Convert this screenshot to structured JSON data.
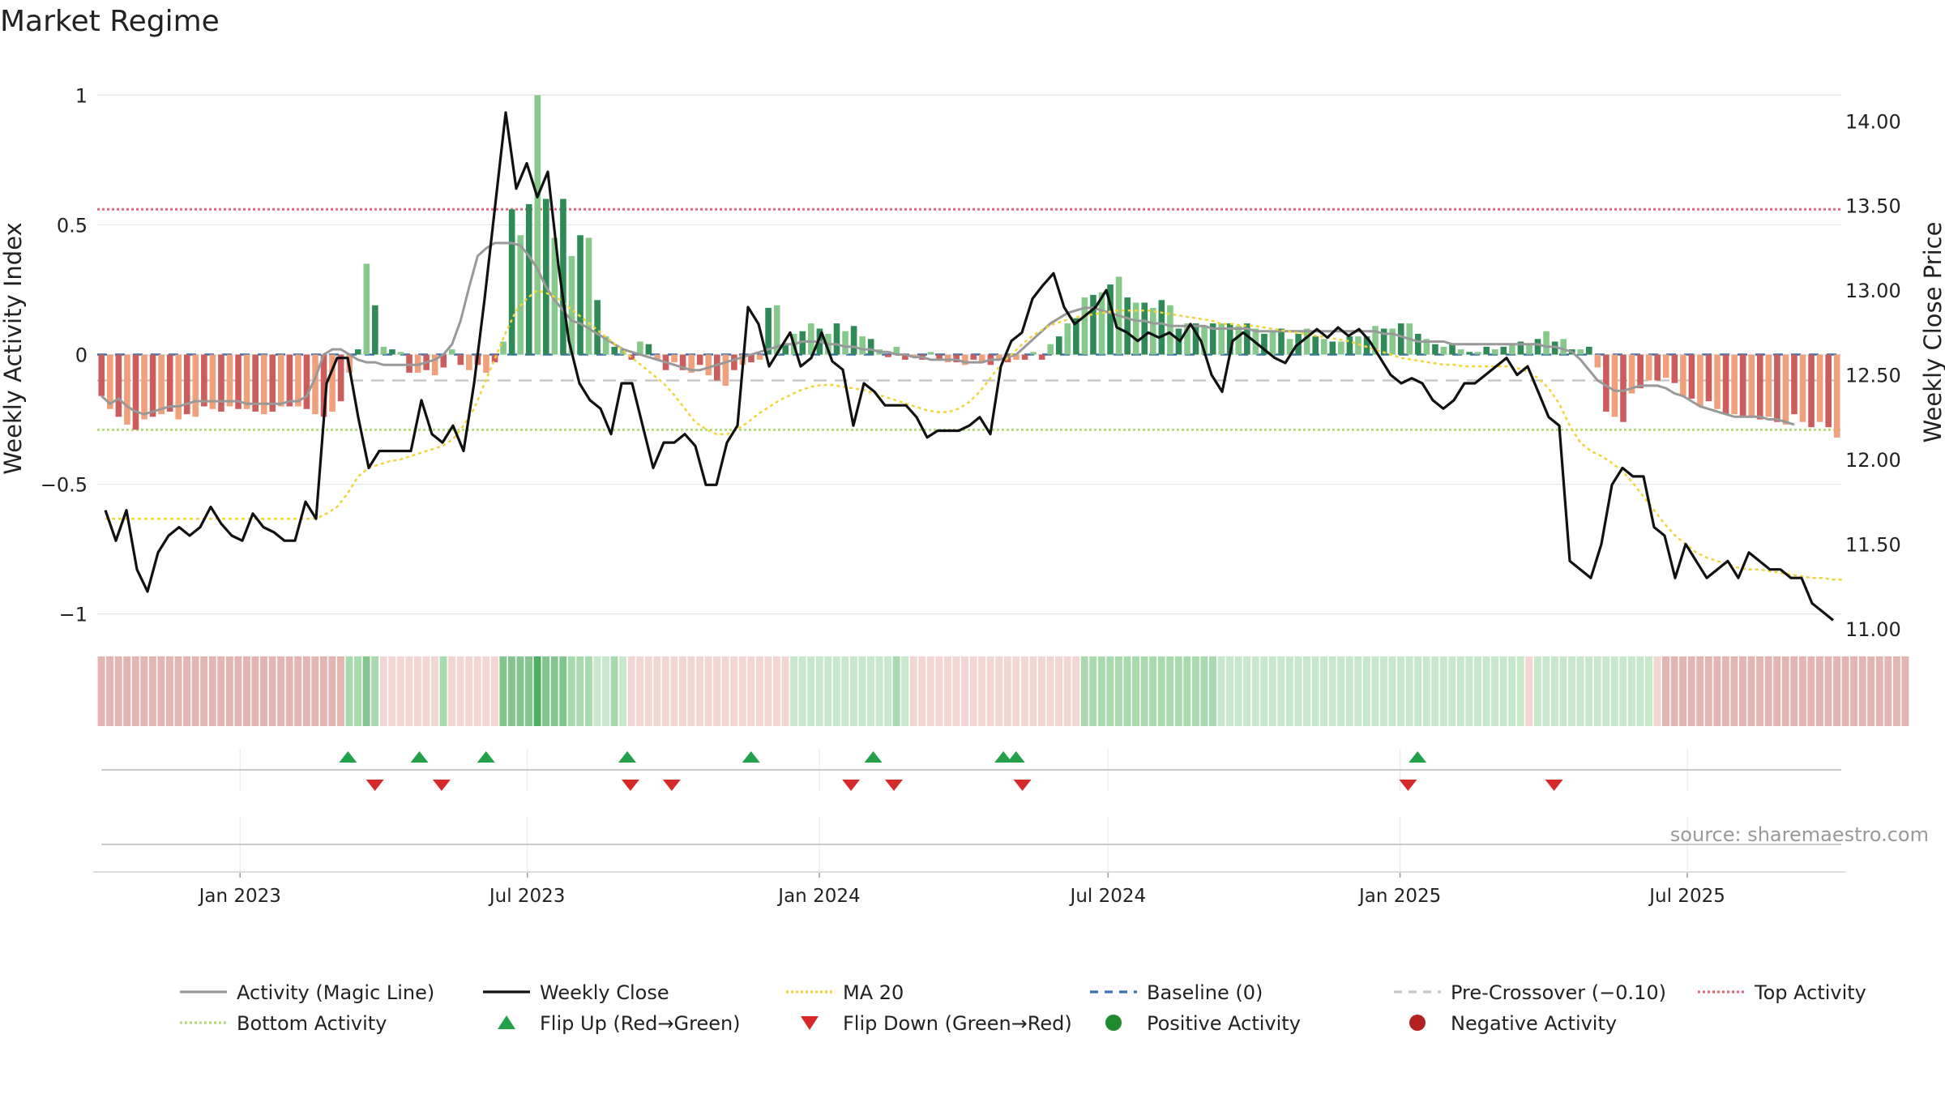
{
  "chart_data": {
    "type": "bar",
    "title": "Market Regime",
    "ylabel_left": "Weekly Activity Index",
    "ylabel_right": "Weekly Close Price",
    "ylim_left": [
      -1.07,
      1.07
    ],
    "ylim_right": [
      10.98,
      14.26
    ],
    "yticks_left": [
      {
        "v": 1,
        "label": "1"
      },
      {
        "v": 0.5,
        "label": "0.5"
      },
      {
        "v": 0,
        "label": "0"
      },
      {
        "v": -0.5,
        "label": "−0.5"
      },
      {
        "v": -1,
        "label": "−1"
      }
    ],
    "yticks_right": [
      {
        "v": 14.0,
        "label": "14.00"
      },
      {
        "v": 13.5,
        "label": "13.50"
      },
      {
        "v": 13.0,
        "label": "13.00"
      },
      {
        "v": 12.5,
        "label": "12.50"
      },
      {
        "v": 12.0,
        "label": "12.00"
      },
      {
        "v": 11.5,
        "label": "11.50"
      },
      {
        "v": 11.0,
        "label": "11.00"
      }
    ],
    "x_start": "2022-10-03",
    "x_end": "2025-10-06",
    "xticks": [
      {
        "date": "2023-01-01",
        "label": "Jan 2023"
      },
      {
        "date": "2023-07-01",
        "label": "Jul 2023"
      },
      {
        "date": "2024-01-01",
        "label": "Jan 2024"
      },
      {
        "date": "2024-07-01",
        "label": "Jul 2024"
      },
      {
        "date": "2025-01-01",
        "label": "Jan 2025"
      },
      {
        "date": "2025-07-01",
        "label": "Jul 2025"
      }
    ],
    "top_activity": 0.56,
    "bottom_activity": -0.29,
    "pre_crossover": -0.1,
    "baseline": 0,
    "activity": [
      -0.16,
      -0.21,
      -0.24,
      -0.27,
      -0.29,
      -0.25,
      -0.24,
      -0.23,
      -0.22,
      -0.25,
      -0.23,
      -0.24,
      -0.2,
      -0.21,
      -0.22,
      -0.2,
      -0.21,
      -0.21,
      -0.22,
      -0.23,
      -0.22,
      -0.2,
      -0.2,
      -0.2,
      -0.21,
      -0.23,
      -0.24,
      -0.22,
      -0.18,
      -0.07,
      0.02,
      0.35,
      0.19,
      0.03,
      0.02,
      0.01,
      -0.07,
      -0.07,
      -0.06,
      -0.08,
      -0.05,
      0.02,
      -0.04,
      -0.06,
      -0.04,
      -0.07,
      -0.03,
      0.05,
      0.56,
      0.46,
      0.58,
      1.0,
      0.6,
      0.45,
      0.6,
      0.38,
      0.46,
      0.45,
      0.21,
      0.07,
      0.03,
      0.02,
      -0.02,
      0.05,
      0.04,
      -0.02,
      -0.06,
      -0.03,
      -0.06,
      -0.07,
      -0.04,
      -0.08,
      -0.1,
      -0.12,
      -0.06,
      -0.04,
      -0.03,
      -0.02,
      0.18,
      0.19,
      0.04,
      0.08,
      0.09,
      0.12,
      0.1,
      0.08,
      0.12,
      0.09,
      0.11,
      0.07,
      0.06,
      0.02,
      -0.01,
      0.03,
      -0.02,
      -0.01,
      -0.02,
      0.01,
      -0.02,
      -0.03,
      -0.03,
      -0.04,
      -0.02,
      -0.03,
      -0.04,
      -0.02,
      -0.03,
      -0.02,
      -0.02,
      0.01,
      -0.02,
      0.04,
      0.07,
      0.12,
      0.14,
      0.22,
      0.23,
      0.24,
      0.27,
      0.3,
      0.22,
      0.2,
      0.2,
      0.18,
      0.21,
      0.19,
      0.1,
      0.12,
      0.12,
      0.11,
      0.12,
      0.12,
      0.12,
      0.11,
      0.12,
      0.1,
      0.08,
      0.09,
      0.1,
      0.06,
      0.08,
      0.1,
      0.07,
      0.06,
      0.05,
      0.05,
      0.07,
      0.07,
      0.07,
      0.11,
      0.1,
      0.1,
      0.12,
      0.12,
      0.08,
      0.06,
      0.04,
      0.03,
      0.04,
      0.02,
      0.01,
      0.01,
      0.03,
      0.02,
      0.03,
      0.04,
      0.05,
      0.04,
      0.06,
      0.09,
      0.05,
      0.06,
      0.02,
      0.02,
      0.03,
      -0.05,
      -0.22,
      -0.24,
      -0.26,
      -0.15,
      -0.13,
      -0.1,
      -0.1,
      -0.09,
      -0.11,
      -0.16,
      -0.17,
      -0.2,
      -0.18,
      -0.21,
      -0.23,
      -0.23,
      -0.24,
      -0.24,
      -0.25,
      -0.24,
      -0.26,
      -0.27,
      -0.23,
      -0.26,
      -0.28,
      -0.26,
      -0.28,
      -0.32
    ],
    "magic_line": [
      -0.16,
      -0.19,
      -0.17,
      -0.2,
      -0.22,
      -0.23,
      -0.22,
      -0.21,
      -0.2,
      -0.2,
      -0.19,
      -0.18,
      -0.18,
      -0.18,
      -0.18,
      -0.18,
      -0.18,
      -0.19,
      -0.19,
      -0.19,
      -0.19,
      -0.19,
      -0.18,
      -0.18,
      -0.16,
      -0.09,
      0.0,
      0.02,
      0.02,
      0.0,
      -0.02,
      -0.03,
      -0.03,
      -0.04,
      -0.04,
      -0.04,
      -0.04,
      -0.04,
      -0.03,
      -0.02,
      0.0,
      0.04,
      0.13,
      0.26,
      0.38,
      0.41,
      0.43,
      0.43,
      0.43,
      0.42,
      0.38,
      0.33,
      0.26,
      0.21,
      0.17,
      0.13,
      0.12,
      0.1,
      0.08,
      0.06,
      0.04,
      0.02,
      0.01,
      0.0,
      -0.01,
      -0.02,
      -0.03,
      -0.04,
      -0.05,
      -0.06,
      -0.06,
      -0.05,
      -0.04,
      -0.03,
      -0.02,
      -0.01,
      0.0,
      0.01,
      0.02,
      0.03,
      0.04,
      0.04,
      0.05,
      0.05,
      0.05,
      0.04,
      0.04,
      0.03,
      0.03,
      0.02,
      0.02,
      0.01,
      0.01,
      0.0,
      0.0,
      -0.01,
      -0.01,
      -0.02,
      -0.02,
      -0.02,
      -0.02,
      -0.03,
      -0.03,
      -0.03,
      -0.02,
      -0.02,
      -0.01,
      0.0,
      0.03,
      0.06,
      0.09,
      0.12,
      0.14,
      0.16,
      0.17,
      0.18,
      0.18,
      0.17,
      0.16,
      0.15,
      0.14,
      0.13,
      0.13,
      0.12,
      0.12,
      0.11,
      0.11,
      0.11,
      0.11,
      0.11,
      0.1,
      0.1,
      0.1,
      0.1,
      0.1,
      0.09,
      0.09,
      0.09,
      0.09,
      0.09,
      0.09,
      0.09,
      0.09,
      0.09,
      0.09,
      0.09,
      0.09,
      0.09,
      0.09,
      0.09,
      0.08,
      0.08,
      0.07,
      0.06,
      0.05,
      0.05,
      0.05,
      0.05,
      0.04,
      0.04,
      0.04,
      0.04,
      0.04,
      0.04,
      0.04,
      0.04,
      0.04,
      0.04,
      0.04,
      0.03,
      0.03,
      0.02,
      0.01,
      -0.02,
      -0.06,
      -0.1,
      -0.12,
      -0.14,
      -0.14,
      -0.13,
      -0.12,
      -0.12,
      -0.12,
      -0.13,
      -0.15,
      -0.16,
      -0.18,
      -0.2,
      -0.21,
      -0.22,
      -0.23,
      -0.24,
      -0.24,
      -0.24,
      -0.24,
      -0.25,
      -0.25,
      -0.26,
      -0.27
    ],
    "weekly_close": [
      11.7,
      11.52,
      11.7,
      11.35,
      11.22,
      11.45,
      11.55,
      11.6,
      11.55,
      11.6,
      11.72,
      11.62,
      11.55,
      11.52,
      11.68,
      11.6,
      11.57,
      11.52,
      11.52,
      11.75,
      11.65,
      12.45,
      12.6,
      12.6,
      12.25,
      11.95,
      12.05,
      12.05,
      12.05,
      12.05,
      12.35,
      12.15,
      12.1,
      12.2,
      12.05,
      12.45,
      12.95,
      13.5,
      14.05,
      13.6,
      13.75,
      13.55,
      13.7,
      13.15,
      12.7,
      12.45,
      12.35,
      12.3,
      12.15,
      12.45,
      12.45,
      12.2,
      11.95,
      12.1,
      12.1,
      12.15,
      12.08,
      11.85,
      11.85,
      12.1,
      12.2,
      12.9,
      12.8,
      12.55,
      12.65,
      12.75,
      12.55,
      12.6,
      12.75,
      12.58,
      12.53,
      12.2,
      12.45,
      12.4,
      12.32,
      12.32,
      12.32,
      12.25,
      12.13,
      12.17,
      12.17,
      12.17,
      12.2,
      12.25,
      12.15,
      12.55,
      12.7,
      12.75,
      12.95,
      13.03,
      13.1,
      12.9,
      12.8,
      12.85,
      12.9,
      13.0,
      12.78,
      12.75,
      12.7,
      12.75,
      12.72,
      12.75,
      12.7,
      12.8,
      12.7,
      12.5,
      12.4,
      12.7,
      12.75,
      12.7,
      12.65,
      12.6,
      12.57,
      12.67,
      12.72,
      12.77,
      12.72,
      12.78,
      12.73,
      12.77,
      12.7,
      12.6,
      12.5,
      12.45,
      12.48,
      12.45,
      12.35,
      12.3,
      12.35,
      12.45,
      12.45,
      12.5,
      12.55,
      12.6,
      12.5,
      12.55,
      12.4,
      12.25,
      12.2,
      11.4,
      11.35,
      11.3,
      11.5,
      11.85,
      11.95,
      11.9,
      11.9,
      11.6,
      11.55,
      11.3,
      11.5,
      11.4,
      11.3,
      11.35,
      11.4,
      11.3,
      11.45,
      11.4,
      11.35,
      11.35,
      11.3,
      11.3,
      11.15,
      11.1,
      11.05
    ],
    "ma20": [
      11.65,
      11.65,
      11.65,
      11.65,
      11.65,
      11.65,
      11.65,
      11.65,
      11.65,
      11.65,
      11.65,
      11.65,
      11.65,
      11.65,
      11.65,
      11.65,
      11.65,
      11.65,
      11.65,
      11.65,
      11.65,
      11.68,
      11.72,
      11.8,
      11.9,
      11.95,
      11.97,
      11.99,
      12.0,
      12.02,
      12.04,
      12.06,
      12.08,
      12.12,
      12.2,
      12.3,
      12.45,
      12.6,
      12.75,
      12.88,
      12.95,
      13.0,
      12.98,
      12.95,
      12.9,
      12.85,
      12.8,
      12.75,
      12.7,
      12.65,
      12.6,
      12.55,
      12.5,
      12.45,
      12.38,
      12.3,
      12.22,
      12.18,
      12.15,
      12.15,
      12.18,
      12.22,
      12.27,
      12.31,
      12.35,
      12.38,
      12.41,
      12.43,
      12.44,
      12.44,
      12.43,
      12.42,
      12.41,
      12.39,
      12.37,
      12.35,
      12.33,
      12.31,
      12.29,
      12.28,
      12.28,
      12.3,
      12.34,
      12.4,
      12.48,
      12.56,
      12.62,
      12.68,
      12.73,
      12.77,
      12.8,
      12.82,
      12.84,
      12.85,
      12.86,
      12.87,
      12.88,
      12.88,
      12.88,
      12.88,
      12.87,
      12.86,
      12.85,
      12.84,
      12.83,
      12.82,
      12.8,
      12.8,
      12.79,
      12.79,
      12.78,
      12.77,
      12.76,
      12.75,
      12.74,
      12.73,
      12.72,
      12.71,
      12.7,
      12.68,
      12.66,
      12.64,
      12.62,
      12.6,
      12.59,
      12.58,
      12.57,
      12.56,
      12.56,
      12.55,
      12.55,
      12.55,
      12.55,
      12.55,
      12.54,
      12.52,
      12.48,
      12.42,
      12.33,
      12.2,
      12.1,
      12.05,
      12.02,
      11.98,
      11.93,
      11.86,
      11.78,
      11.7,
      11.62,
      11.55,
      11.5,
      11.45,
      11.42,
      11.4,
      11.38,
      11.36,
      11.35,
      11.35,
      11.34,
      11.33,
      11.32,
      11.31,
      11.3,
      11.3,
      11.29,
      11.29
    ],
    "regime_strip": [
      2,
      2,
      2,
      2,
      2,
      2,
      2,
      2,
      2,
      2,
      2,
      2,
      2,
      2,
      2,
      2,
      2,
      2,
      2,
      2,
      2,
      2,
      2,
      2,
      2,
      2,
      2,
      2,
      2,
      -1,
      -1,
      -2,
      -1,
      1,
      1,
      1,
      1,
      1,
      1,
      1,
      -1,
      1,
      1,
      1,
      1,
      1,
      1,
      -2,
      -2,
      -2,
      -2,
      -3,
      -2,
      -2,
      -2,
      -1,
      -1,
      -1,
      0,
      0,
      -1,
      0,
      1,
      1,
      1,
      1,
      1,
      1,
      1,
      1,
      1,
      1,
      1,
      1,
      1,
      1,
      1,
      1,
      1,
      1,
      1,
      0,
      0,
      0,
      0,
      0,
      0,
      0,
      0,
      0,
      0,
      0,
      0,
      -1,
      0,
      1,
      1,
      1,
      1,
      1,
      1,
      1,
      1,
      1,
      1,
      1,
      1,
      1,
      1,
      1,
      1,
      1,
      1,
      1,
      1,
      -1,
      -1,
      -1,
      -1,
      -1,
      -1,
      -1,
      -1,
      -1,
      -1,
      -1,
      -1,
      -1,
      -1,
      -1,
      -1,
      0,
      0,
      0,
      0,
      0,
      0,
      0,
      0,
      0,
      0,
      0,
      0,
      0,
      0,
      0,
      0,
      0,
      0,
      0,
      0,
      0,
      0,
      0,
      0,
      0,
      0,
      0,
      0,
      0,
      0,
      0,
      0,
      0,
      0,
      0,
      0,
      1,
      0,
      0,
      0,
      0,
      0,
      0,
      0,
      0,
      0,
      0,
      0,
      0,
      0,
      0,
      1,
      2,
      2,
      2,
      2,
      2,
      2,
      2,
      2,
      2,
      2,
      2,
      2,
      2,
      2,
      2,
      2,
      2,
      2,
      2,
      2,
      2,
      2,
      2,
      2,
      2,
      2,
      2,
      2,
      2
    ],
    "flip_up_dates": [
      "2023-03-10",
      "2023-04-24",
      "2023-06-05",
      "2023-09-02",
      "2023-11-19",
      "2024-02-04",
      "2024-04-26",
      "2024-05-04",
      "2025-01-12"
    ],
    "flip_down_dates": [
      "2023-03-27",
      "2023-05-08",
      "2023-09-04",
      "2023-09-30",
      "2024-01-21",
      "2024-02-17",
      "2024-05-08",
      "2025-01-06",
      "2025-04-08"
    ],
    "source": "source: sharemaestro.com",
    "legend": [
      {
        "label": "Activity (Magic Line)",
        "kind": "line",
        "color": "#999999",
        "dash": ""
      },
      {
        "label": "Weekly Close",
        "kind": "line",
        "color": "#111111",
        "dash": ""
      },
      {
        "label": "MA 20",
        "kind": "line",
        "color": "#f0d43a",
        "dash": "3 3"
      },
      {
        "label": "Baseline (0)",
        "kind": "line",
        "color": "#3a6fb0",
        "dash": "10 8"
      },
      {
        "label": "Pre-Crossover (−0.10)",
        "kind": "line",
        "color": "#c8c8c8",
        "dash": "10 8"
      },
      {
        "label": "Top Activity",
        "kind": "line",
        "color": "#e8677a",
        "dash": "3 3"
      },
      {
        "label": "Bottom Activity",
        "kind": "line",
        "color": "#b6dc7c",
        "dash": "3 3"
      },
      {
        "label": "Flip Up (Red→Green)",
        "kind": "tri-up",
        "color": "#22a04a"
      },
      {
        "label": "Flip Down (Green→Red)",
        "kind": "tri-down",
        "color": "#d62a2a"
      },
      {
        "label": "Positive Activity",
        "kind": "dot",
        "color": "#1f8a2e"
      },
      {
        "label": "Negative Activity",
        "kind": "dot",
        "color": "#b22222"
      }
    ],
    "colors": {
      "pos_strong": "#2e8b57",
      "pos_light": "#86c98a",
      "neg_strong": "#cd5c5c",
      "neg_light": "#f0a07a",
      "grid": "#e6e6e6"
    }
  }
}
